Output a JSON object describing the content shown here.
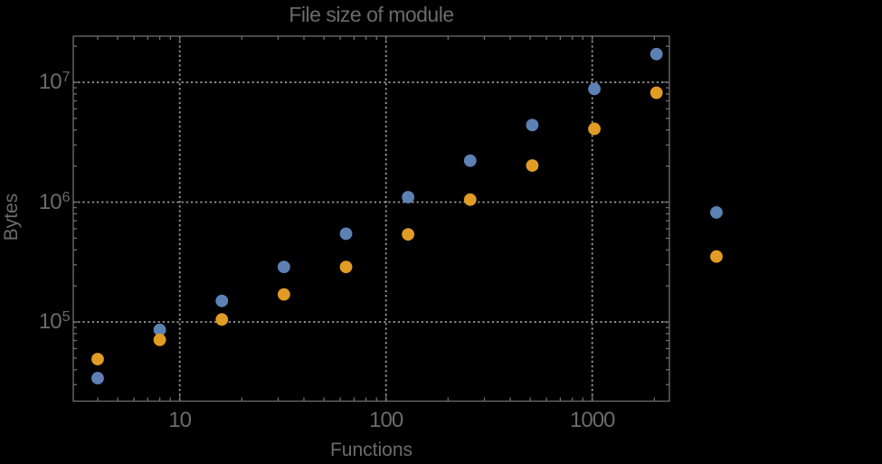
{
  "chart": {
    "title": "File size of module",
    "x_axis": {
      "label": "Functions",
      "scale": "log",
      "tick_labels": [
        "10",
        "100",
        "1000"
      ]
    },
    "y_axis": {
      "label": "Bytes",
      "scale": "log",
      "tick_labels": [
        {
          "base": "10",
          "exp": "7"
        },
        {
          "base": "10",
          "exp": "6"
        },
        {
          "base": "10",
          "exp": "5"
        }
      ]
    },
    "colors": {
      "series_blue": "#5e81b5",
      "series_orange": "#e19c24",
      "text": "#6b6b6b",
      "frame": "#6e6e6e",
      "gridline": "#9b9b9b",
      "background": "#000000"
    }
  },
  "chart_data": {
    "type": "scatter",
    "title": "File size of module",
    "xlabel": "Functions",
    "ylabel": "Bytes",
    "x_scale": "log",
    "y_scale": "log",
    "xlim": [
      3,
      2370
    ],
    "ylim": [
      22000,
      24000000
    ],
    "grid": "dotted",
    "legend": false,
    "x": [
      4,
      8,
      16,
      32,
      64,
      128,
      256,
      512,
      1024,
      2048,
      4000
    ],
    "series": [
      {
        "name": "series-blue",
        "color": "#5e81b5",
        "values": [
          34000,
          86000,
          150000,
          288000,
          545000,
          1100000,
          2220000,
          4400000,
          8800000,
          17200000,
          820000
        ]
      },
      {
        "name": "series-orange",
        "color": "#e19c24",
        "values": [
          49000,
          71000,
          105000,
          170000,
          288000,
          538000,
          1050000,
          2020000,
          4090000,
          8180000,
          352000
        ]
      }
    ],
    "x_major_ticks": [
      10,
      100,
      1000
    ],
    "y_major_ticks": [
      100000,
      1000000,
      10000000
    ]
  }
}
